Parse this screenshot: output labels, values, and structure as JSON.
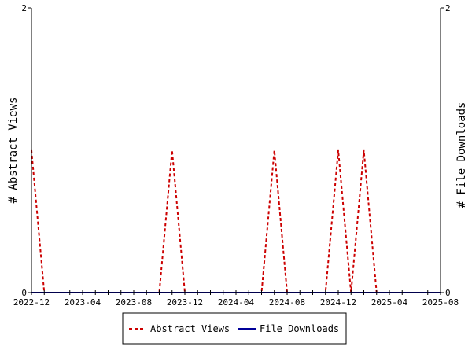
{
  "chart_data": {
    "type": "line",
    "x": [
      "2022-12",
      "2023-01",
      "2023-02",
      "2023-03",
      "2023-04",
      "2023-05",
      "2023-06",
      "2023-07",
      "2023-08",
      "2023-09",
      "2023-10",
      "2023-11",
      "2023-12",
      "2024-01",
      "2024-02",
      "2024-03",
      "2024-04",
      "2024-05",
      "2024-06",
      "2024-07",
      "2024-08",
      "2024-09",
      "2024-10",
      "2024-11",
      "2024-12",
      "2025-01",
      "2025-02",
      "2025-03",
      "2025-04",
      "2025-05",
      "2025-06",
      "2025-07",
      "2025-08"
    ],
    "x_tick_labels": [
      "2022-12",
      "2023-04",
      "2023-08",
      "2023-12",
      "2024-04",
      "2024-08",
      "2024-12",
      "2025-04",
      "2025-08"
    ],
    "series": [
      {
        "name": "Abstract Views",
        "axis": "left",
        "color": "#cc0000",
        "style": "dashed",
        "values": [
          1,
          0,
          0,
          0,
          0,
          0,
          0,
          0,
          0,
          0,
          0,
          1,
          0,
          0,
          0,
          0,
          0,
          0,
          0,
          1,
          0,
          0,
          0,
          0,
          1,
          0,
          1,
          0,
          0,
          0,
          0,
          0,
          0
        ]
      },
      {
        "name": "File Downloads",
        "axis": "right",
        "color": "#000099",
        "style": "solid",
        "values": [
          0,
          0,
          0,
          0,
          0,
          0,
          0,
          0,
          0,
          0,
          0,
          0,
          0,
          0,
          0,
          0,
          0,
          0,
          0,
          0,
          0,
          0,
          0,
          0,
          0,
          0,
          0,
          0,
          0,
          0,
          0,
          0,
          0
        ]
      }
    ],
    "ylabel_left": "# Abstract Views",
    "ylabel_right": "# File Downloads",
    "ylim": [
      0,
      2
    ],
    "y_ticks": [
      "0",
      "2"
    ],
    "grid": false,
    "legend_position": "bottom"
  }
}
